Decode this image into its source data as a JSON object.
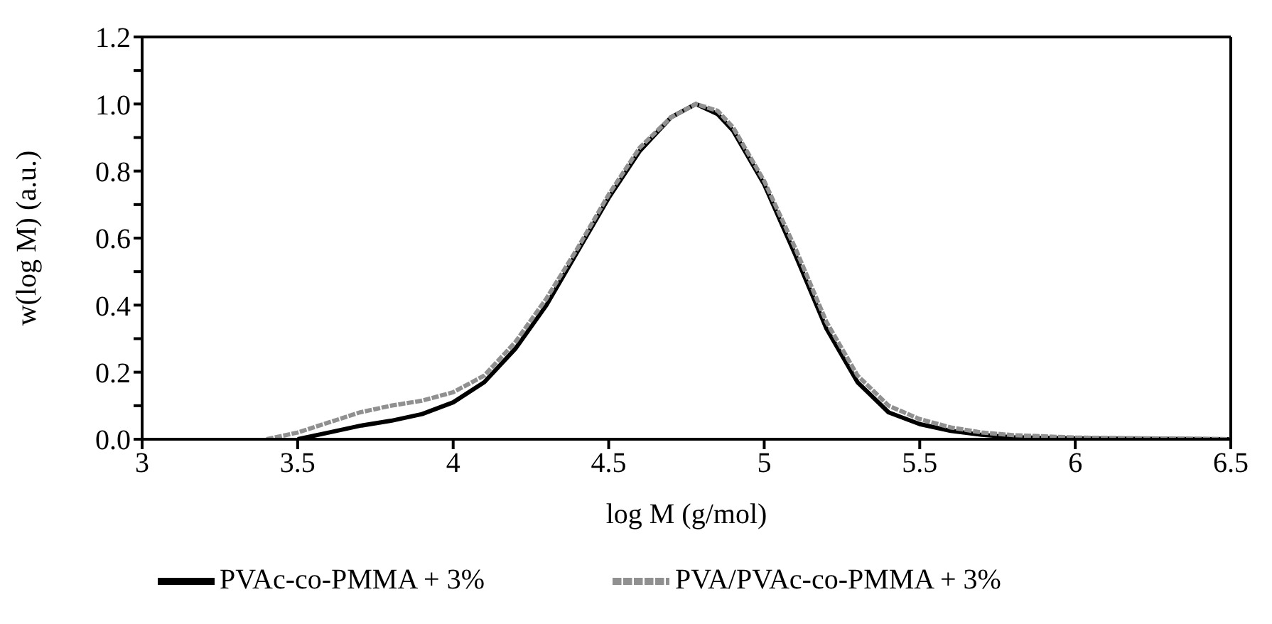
{
  "chart_data": {
    "type": "line",
    "xlabel": "log M (g/mol)",
    "ylabel": "w(log M) (a.u.)",
    "xlim": [
      3,
      6.5
    ],
    "xticks": [
      3,
      3.5,
      4,
      4.5,
      5,
      5.5,
      6,
      6.5
    ],
    "ylim": [
      0,
      1.2
    ],
    "yticks": [
      {
        "value": 0,
        "label": "0.0"
      },
      {
        "value": 0.1,
        "label": null
      },
      {
        "value": 0.2,
        "label": "0.2"
      },
      {
        "value": 0.3,
        "label": null
      },
      {
        "value": 0.4,
        "label": "0.4"
      },
      {
        "value": 0.5,
        "label": null
      },
      {
        "value": 0.6,
        "label": "0.6"
      },
      {
        "value": 0.7,
        "label": null
      },
      {
        "value": 0.8,
        "label": "0.8"
      },
      {
        "value": 0.9,
        "label": null
      },
      {
        "value": 1.0,
        "label": "1.0"
      },
      {
        "value": 1.1,
        "label": null
      },
      {
        "value": 1.2,
        "label": "1.2"
      }
    ],
    "legend": "bottom",
    "marker": "none",
    "series": [
      {
        "name": "PVAc-co-PMMA + 3%",
        "color": "#000000",
        "line_style": "solid",
        "x": [
          3.5,
          3.6,
          3.7,
          3.8,
          3.9,
          4.0,
          4.1,
          4.2,
          4.3,
          4.4,
          4.5,
          4.6,
          4.7,
          4.78,
          4.85,
          4.9,
          5.0,
          5.1,
          5.2,
          5.3,
          5.4,
          5.5,
          5.6,
          5.7,
          5.8,
          6.0,
          6.5
        ],
        "values": [
          0,
          0.02,
          0.04,
          0.055,
          0.075,
          0.11,
          0.17,
          0.27,
          0.4,
          0.56,
          0.72,
          0.86,
          0.96,
          1.0,
          0.97,
          0.92,
          0.76,
          0.55,
          0.33,
          0.17,
          0.08,
          0.045,
          0.025,
          0.013,
          0.006,
          0.002,
          0
        ]
      },
      {
        "name": "PVA/PVAc-co-PMMA + 3%",
        "color": "#909090",
        "line_style": "dashed",
        "x": [
          3.4,
          3.5,
          3.6,
          3.7,
          3.8,
          3.9,
          4.0,
          4.1,
          4.2,
          4.3,
          4.4,
          4.5,
          4.6,
          4.7,
          4.78,
          4.85,
          4.9,
          5.0,
          5.1,
          5.2,
          5.3,
          5.4,
          5.5,
          5.6,
          5.7,
          5.8,
          6.0,
          6.5
        ],
        "values": [
          0,
          0.02,
          0.05,
          0.08,
          0.1,
          0.115,
          0.14,
          0.19,
          0.29,
          0.42,
          0.57,
          0.73,
          0.87,
          0.96,
          1.0,
          0.98,
          0.93,
          0.77,
          0.57,
          0.35,
          0.19,
          0.1,
          0.06,
          0.035,
          0.02,
          0.012,
          0.005,
          0
        ]
      }
    ]
  }
}
